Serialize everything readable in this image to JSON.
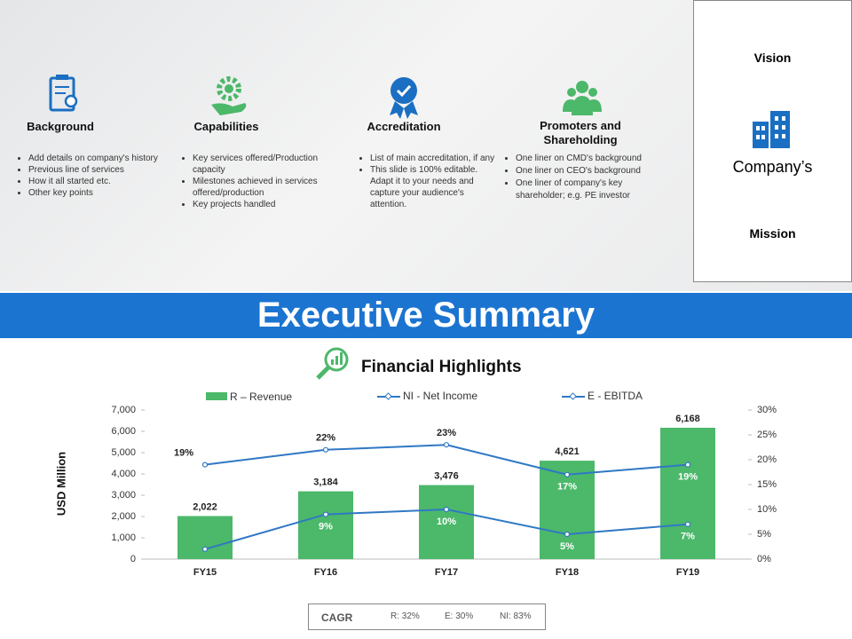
{
  "sections": [
    {
      "title": "Background",
      "bullets": [
        "Add details on company's history",
        "Previous line of services",
        "How it all started etc.",
        "Other key points"
      ]
    },
    {
      "title": "Capabilities",
      "bullets": [
        "Key services offered/Production capacity",
        "Milestones achieved in services offered/production",
        "Key projects handled"
      ]
    },
    {
      "title": "Accreditation",
      "bullets": [
        "List of main accreditation, if any",
        "This slide is 100% editable.  Adapt it to your needs and capture your audience's attention."
      ]
    },
    {
      "title": "Promoters and Shareholding",
      "bullets": [
        "One liner on CMD's background",
        "One liner on CEO's background",
        "One liner of company's key shareholder; e.g. PE investor"
      ]
    }
  ],
  "side": {
    "top": "Vision",
    "middle": "Company’s",
    "bottom": "Mission"
  },
  "banner": "Executive Summary",
  "cagr": {
    "label": "CAGR",
    "items": [
      "R: 32%",
      "E: 30%",
      "NI: 83%"
    ]
  },
  "chart_data": {
    "type": "bar",
    "title": "Financial Highlights",
    "ylabel": "USD Million",
    "categories": [
      "FY15",
      "FY16",
      "FY17",
      "FY18",
      "FY19"
    ],
    "series": [
      {
        "name": "R – Revenue",
        "type": "bar",
        "color": "#4cb86a",
        "values": [
          2022,
          3184,
          3476,
          4621,
          6168
        ],
        "value_labels": [
          "2,022",
          "3,184",
          "3,476",
          "4,621",
          "6,168"
        ]
      },
      {
        "name": "NI - Net Income",
        "type": "line",
        "axis": "y2",
        "color": "#2f78c4",
        "values": [
          2,
          9,
          10,
          5,
          7
        ],
        "value_labels": [
          null,
          "9%",
          "10%",
          "5%",
          "7%"
        ]
      },
      {
        "name": "E - EBITDA",
        "type": "line",
        "axis": "y2",
        "color": "#2f78c4",
        "values": [
          19,
          22,
          23,
          17,
          19
        ],
        "value_labels": [
          "19%",
          "22%",
          "23%",
          "17%",
          "19%"
        ]
      }
    ],
    "ylim": [
      0,
      7000
    ],
    "yticks": [
      0,
      {
        "value": 1000,
        "label": "1,000"
      },
      {
        "value": 2000,
        "label": "2,000"
      },
      {
        "value": 3000,
        "label": "3,000"
      },
      {
        "value": 4000,
        "label": "4,000"
      },
      {
        "value": 5000,
        "label": "5,000"
      },
      {
        "value": 6000,
        "label": "6,000"
      },
      {
        "value": 7000,
        "label": "7,000"
      }
    ],
    "y2lim": [
      0,
      30
    ],
    "y2ticks": [
      {
        "value": 0,
        "label": "0%"
      },
      {
        "value": 5,
        "label": "5%"
      },
      {
        "value": 10,
        "label": "10%"
      },
      {
        "value": 15,
        "label": "15%"
      },
      {
        "value": 20,
        "label": "20%"
      },
      {
        "value": 25,
        "label": "25%"
      },
      {
        "value": 30,
        "label": "30%"
      }
    ]
  }
}
